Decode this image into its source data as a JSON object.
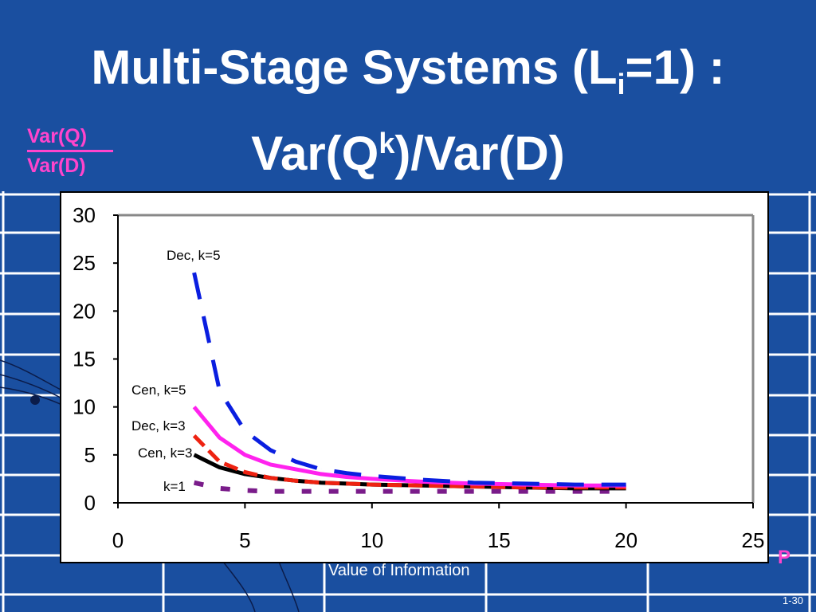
{
  "slide": {
    "title_part1": "Multi-Stage Systems (L",
    "title_sub": "i",
    "title_part2": "=1) :",
    "title_line2_part1": "Var(Q",
    "title_line2_sup": "k",
    "title_line2_part2": ")/Var(D)",
    "ylabel_numerator": "Var(Q)",
    "ylabel_denominator": "Var(D)",
    "bottom_caption": "Value of Information",
    "corner_mark": "P",
    "slide_number": "1-30"
  },
  "colors": {
    "background": "#1a4fa0",
    "accent_pink": "#ff44cc"
  },
  "chart_data": {
    "type": "line",
    "xlim": [
      0,
      25
    ],
    "ylim": [
      0,
      30
    ],
    "xticks": [
      0,
      5,
      10,
      15,
      20,
      25
    ],
    "yticks": [
      0,
      5,
      10,
      15,
      20,
      25,
      30
    ],
    "grid": false,
    "series": [
      {
        "name": "Dec, k=5",
        "color": "#0a1ee0",
        "style": "long-dash",
        "x": [
          3,
          4,
          5,
          6,
          7,
          8,
          9,
          10,
          12,
          14,
          16,
          18,
          20
        ],
        "y": [
          24,
          11.7,
          7.5,
          5.5,
          4.3,
          3.5,
          3.1,
          2.8,
          2.4,
          2.1,
          2.0,
          1.9,
          1.9
        ]
      },
      {
        "name": "Cen, k=5",
        "color": "#ff22ee",
        "style": "solid",
        "x": [
          3,
          4,
          5,
          6,
          7,
          8,
          9,
          10,
          12,
          14,
          16,
          18,
          20
        ],
        "y": [
          10,
          6.8,
          5.0,
          4.0,
          3.5,
          3.0,
          2.7,
          2.5,
          2.2,
          2.0,
          1.9,
          1.8,
          1.8
        ]
      },
      {
        "name": "Dec, k=3",
        "color": "#ee2211",
        "style": "short-dash",
        "x": [
          3,
          4,
          5,
          6,
          7,
          8,
          9,
          10,
          12,
          14,
          16,
          18,
          20
        ],
        "y": [
          7.0,
          4.3,
          3.2,
          2.6,
          2.3,
          2.1,
          2.0,
          1.9,
          1.8,
          1.7,
          1.6,
          1.6,
          1.6
        ]
      },
      {
        "name": "Cen, k=3",
        "color": "#000000",
        "style": "solid",
        "x": [
          3,
          4,
          5,
          6,
          7,
          8,
          9,
          10,
          12,
          14,
          16,
          18,
          20
        ],
        "y": [
          5.0,
          3.7,
          3.0,
          2.6,
          2.3,
          2.1,
          2.0,
          1.9,
          1.8,
          1.7,
          1.6,
          1.5,
          1.5
        ]
      },
      {
        "name": "k=1",
        "color": "#7a1c8a",
        "style": "dotted",
        "x": [
          3,
          4,
          5,
          6,
          7,
          8,
          9,
          10,
          12,
          14,
          16,
          18,
          20
        ],
        "y": [
          2.1,
          1.5,
          1.3,
          1.2,
          1.2,
          1.2,
          1.2,
          1.2,
          1.2,
          1.2,
          1.2,
          1.2,
          1.2
        ]
      }
    ]
  }
}
